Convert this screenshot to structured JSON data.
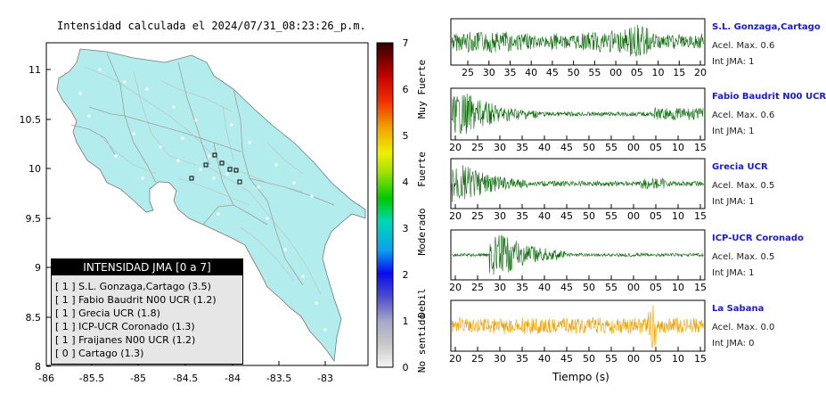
{
  "title": "Intensidad calculada el 2024/07/31_08:23:26_p.m.",
  "map": {
    "x_ticks": [
      "-86",
      "-85.5",
      "-85",
      "-84.5",
      "-84",
      "-83.5",
      "-83"
    ],
    "y_ticks": [
      "11",
      "10.5",
      "10",
      "9.5",
      "9",
      "8.5",
      "8"
    ],
    "land_color": "#b3ecec",
    "border_color": "#999999"
  },
  "colorbar": {
    "ticks": [
      "7",
      "6",
      "5",
      "4",
      "3",
      "2",
      "1",
      "0"
    ],
    "labels": [
      "Muy Fuerte",
      "Fuerte",
      "Moderado",
      "Debil",
      "No sentido"
    ]
  },
  "legend": {
    "header": "INTENSIDAD JMA [0 a 7]",
    "items": [
      "[ 1 ]  S.L. Gonzaga,Cartago (3.5)",
      "[ 1 ]  Fabio Baudrit N00 UCR (1.2)",
      "[ 1 ]  Grecia UCR (1.8)",
      "[ 1 ]  ICP-UCR Coronado (1.3)",
      "[ 1 ]  Fraijanes N00 UCR (1.2)",
      "[ 0 ]  Cartago (1.3)"
    ]
  },
  "stations": [
    {
      "name": "S.L. Gonzaga,Cartago",
      "accel": "Acel. Max. 0.6",
      "jma": "Int JMA: 1",
      "ticks": [
        "25",
        "30",
        "35",
        "40",
        "45",
        "50",
        "55",
        "00",
        "05",
        "10",
        "15",
        "20"
      ],
      "color": "#0a6b0a"
    },
    {
      "name": "Fabio Baudrit N00 UCR",
      "accel": "Acel. Max. 0.6",
      "jma": "Int JMA: 1",
      "ticks": [
        "20",
        "25",
        "30",
        "35",
        "40",
        "45",
        "50",
        "55",
        "00",
        "05",
        "10",
        "15"
      ],
      "color": "#0a6b0a"
    },
    {
      "name": "Grecia UCR",
      "accel": "Acel. Max. 0.5",
      "jma": "Int JMA: 1",
      "ticks": [
        "20",
        "25",
        "30",
        "35",
        "40",
        "45",
        "50",
        "55",
        "00",
        "05",
        "10",
        "15"
      ],
      "color": "#0a6b0a"
    },
    {
      "name": "ICP-UCR Coronado",
      "accel": "Acel. Max. 0.5",
      "jma": "Int JMA: 1",
      "ticks": [
        "20",
        "25",
        "30",
        "35",
        "40",
        "45",
        "50",
        "55",
        "00",
        "05",
        "10",
        "15"
      ],
      "color": "#0a6b0a"
    },
    {
      "name": "La Sabana",
      "accel": "Acel. Max. 0.0",
      "jma": "Int JMA: 0",
      "ticks": [
        "20",
        "25",
        "30",
        "35",
        "40",
        "45",
        "50",
        "55",
        "00",
        "05",
        "10",
        "15"
      ],
      "color": "#f0a000"
    }
  ],
  "xlabel": "Tiempo (s)"
}
